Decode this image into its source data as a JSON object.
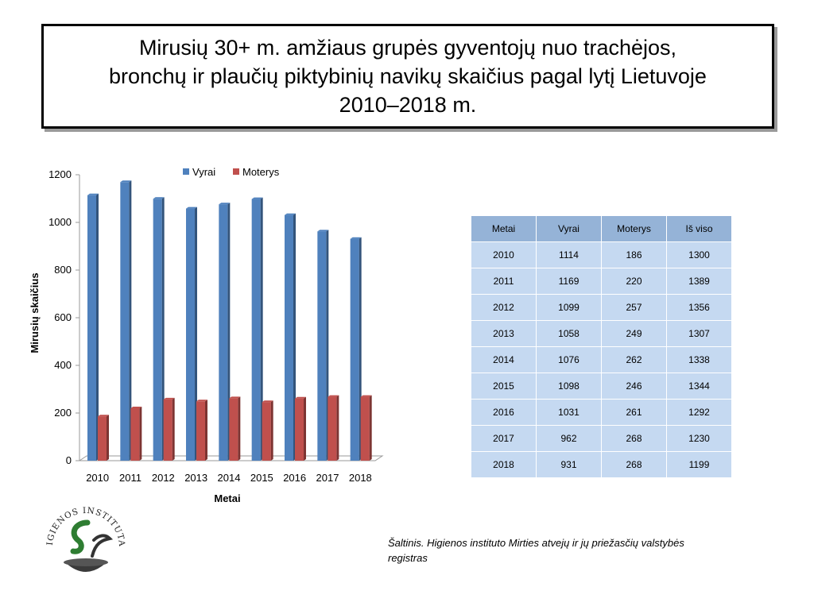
{
  "title": "Mirusių 30+ m. amžiaus grupės gyventojų nuo trachėjos,\nbronchų ir plaučių piktybinių navikų skaičius pagal lytį Lietuvoje\n2010–2018 m.",
  "chart_data": {
    "type": "bar",
    "categories": [
      "2010",
      "2011",
      "2012",
      "2013",
      "2014",
      "2015",
      "2016",
      "2017",
      "2018"
    ],
    "series": [
      {
        "name": "Vyrai",
        "color": "#4f81bd",
        "values": [
          1114,
          1169,
          1099,
          1058,
          1076,
          1098,
          1031,
          962,
          931
        ]
      },
      {
        "name": "Moterys",
        "color": "#c0504d",
        "values": [
          186,
          220,
          257,
          249,
          262,
          246,
          261,
          268,
          268
        ]
      }
    ],
    "xlabel": "Metai",
    "ylabel": "Mirusių skaičius",
    "ylim": [
      0,
      1200
    ],
    "yticks": [
      "0",
      "200",
      "400",
      "600",
      "800",
      "1000",
      "1200"
    ],
    "legend": "top",
    "grid": false,
    "style": "3d-columns"
  },
  "table": {
    "headers": [
      "Metai",
      "Vyrai",
      "Moterys",
      "Iš viso"
    ],
    "rows": [
      [
        "2010",
        "1114",
        "186",
        "1300"
      ],
      [
        "2011",
        "1169",
        "220",
        "1389"
      ],
      [
        "2012",
        "1099",
        "257",
        "1356"
      ],
      [
        "2013",
        "1058",
        "249",
        "1307"
      ],
      [
        "2014",
        "1076",
        "262",
        "1338"
      ],
      [
        "2015",
        "1098",
        "246",
        "1344"
      ],
      [
        "2016",
        "1031",
        "261",
        "1292"
      ],
      [
        "2017",
        "962",
        "268",
        "1230"
      ],
      [
        "2018",
        "931",
        "268",
        "1199"
      ]
    ]
  },
  "source": "Šaltinis. Higienos instituto  Mirties atvejų ir jų priežasčių valstybės registras",
  "logo": {
    "text": "HIGIENOS INSTITUTAS",
    "icon": "higienos-institutas-logo"
  }
}
